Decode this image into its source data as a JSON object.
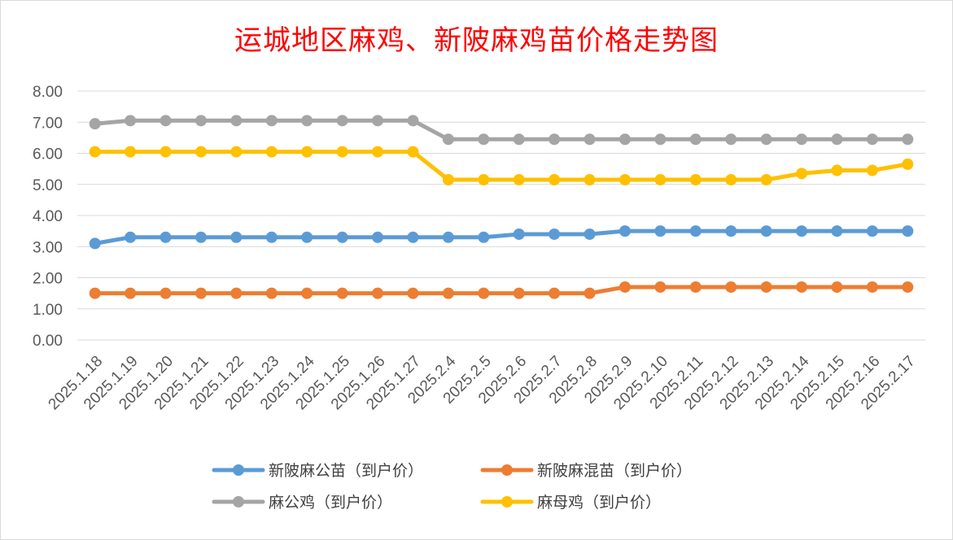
{
  "chart_data": {
    "type": "line",
    "title": "运城地区麻鸡、新陂麻鸡苗价格走势图",
    "categories": [
      "2025.1.18",
      "2025.1.19",
      "2025.1.20",
      "2025.1.21",
      "2025.1.22",
      "2025.1.23",
      "2025.1.24",
      "2025.1.25",
      "2025.1.26",
      "2025.1.27",
      "2025.2.4",
      "2025.2.5",
      "2025.2.6",
      "2025.2.7",
      "2025.2.8",
      "2025.2.9",
      "2025.2.10",
      "2025.2.11",
      "2025.2.12",
      "2025.2.13",
      "2025.2.14",
      "2025.2.15",
      "2025.2.16",
      "2025.2.17"
    ],
    "ylim": [
      0,
      8
    ],
    "yticks": [
      "0.00",
      "1.00",
      "2.00",
      "3.00",
      "4.00",
      "5.00",
      "6.00",
      "7.00",
      "8.00"
    ],
    "grid": true,
    "legend_position": "bottom",
    "series": [
      {
        "name": "新陂麻公苗（到户价）",
        "color": "#5b9bd5",
        "values": [
          3.1,
          3.3,
          3.3,
          3.3,
          3.3,
          3.3,
          3.3,
          3.3,
          3.3,
          3.3,
          3.3,
          3.3,
          3.4,
          3.4,
          3.4,
          3.5,
          3.5,
          3.5,
          3.5,
          3.5,
          3.5,
          3.5,
          3.5,
          3.5
        ]
      },
      {
        "name": "新陂麻混苗（到户价）",
        "color": "#ed7d31",
        "values": [
          1.5,
          1.5,
          1.5,
          1.5,
          1.5,
          1.5,
          1.5,
          1.5,
          1.5,
          1.5,
          1.5,
          1.5,
          1.5,
          1.5,
          1.5,
          1.7,
          1.7,
          1.7,
          1.7,
          1.7,
          1.7,
          1.7,
          1.7,
          1.7
        ]
      },
      {
        "name": "麻公鸡（到户价）",
        "color": "#a5a5a5",
        "values": [
          6.95,
          7.05,
          7.05,
          7.05,
          7.05,
          7.05,
          7.05,
          7.05,
          7.05,
          7.05,
          6.45,
          6.45,
          6.45,
          6.45,
          6.45,
          6.45,
          6.45,
          6.45,
          6.45,
          6.45,
          6.45,
          6.45,
          6.45,
          6.45
        ]
      },
      {
        "name": "麻母鸡（到户价）",
        "color": "#ffc000",
        "values": [
          6.05,
          6.05,
          6.05,
          6.05,
          6.05,
          6.05,
          6.05,
          6.05,
          6.05,
          6.05,
          5.15,
          5.15,
          5.15,
          5.15,
          5.15,
          5.15,
          5.15,
          5.15,
          5.15,
          5.15,
          5.35,
          5.45,
          5.45,
          5.65
        ]
      }
    ]
  }
}
